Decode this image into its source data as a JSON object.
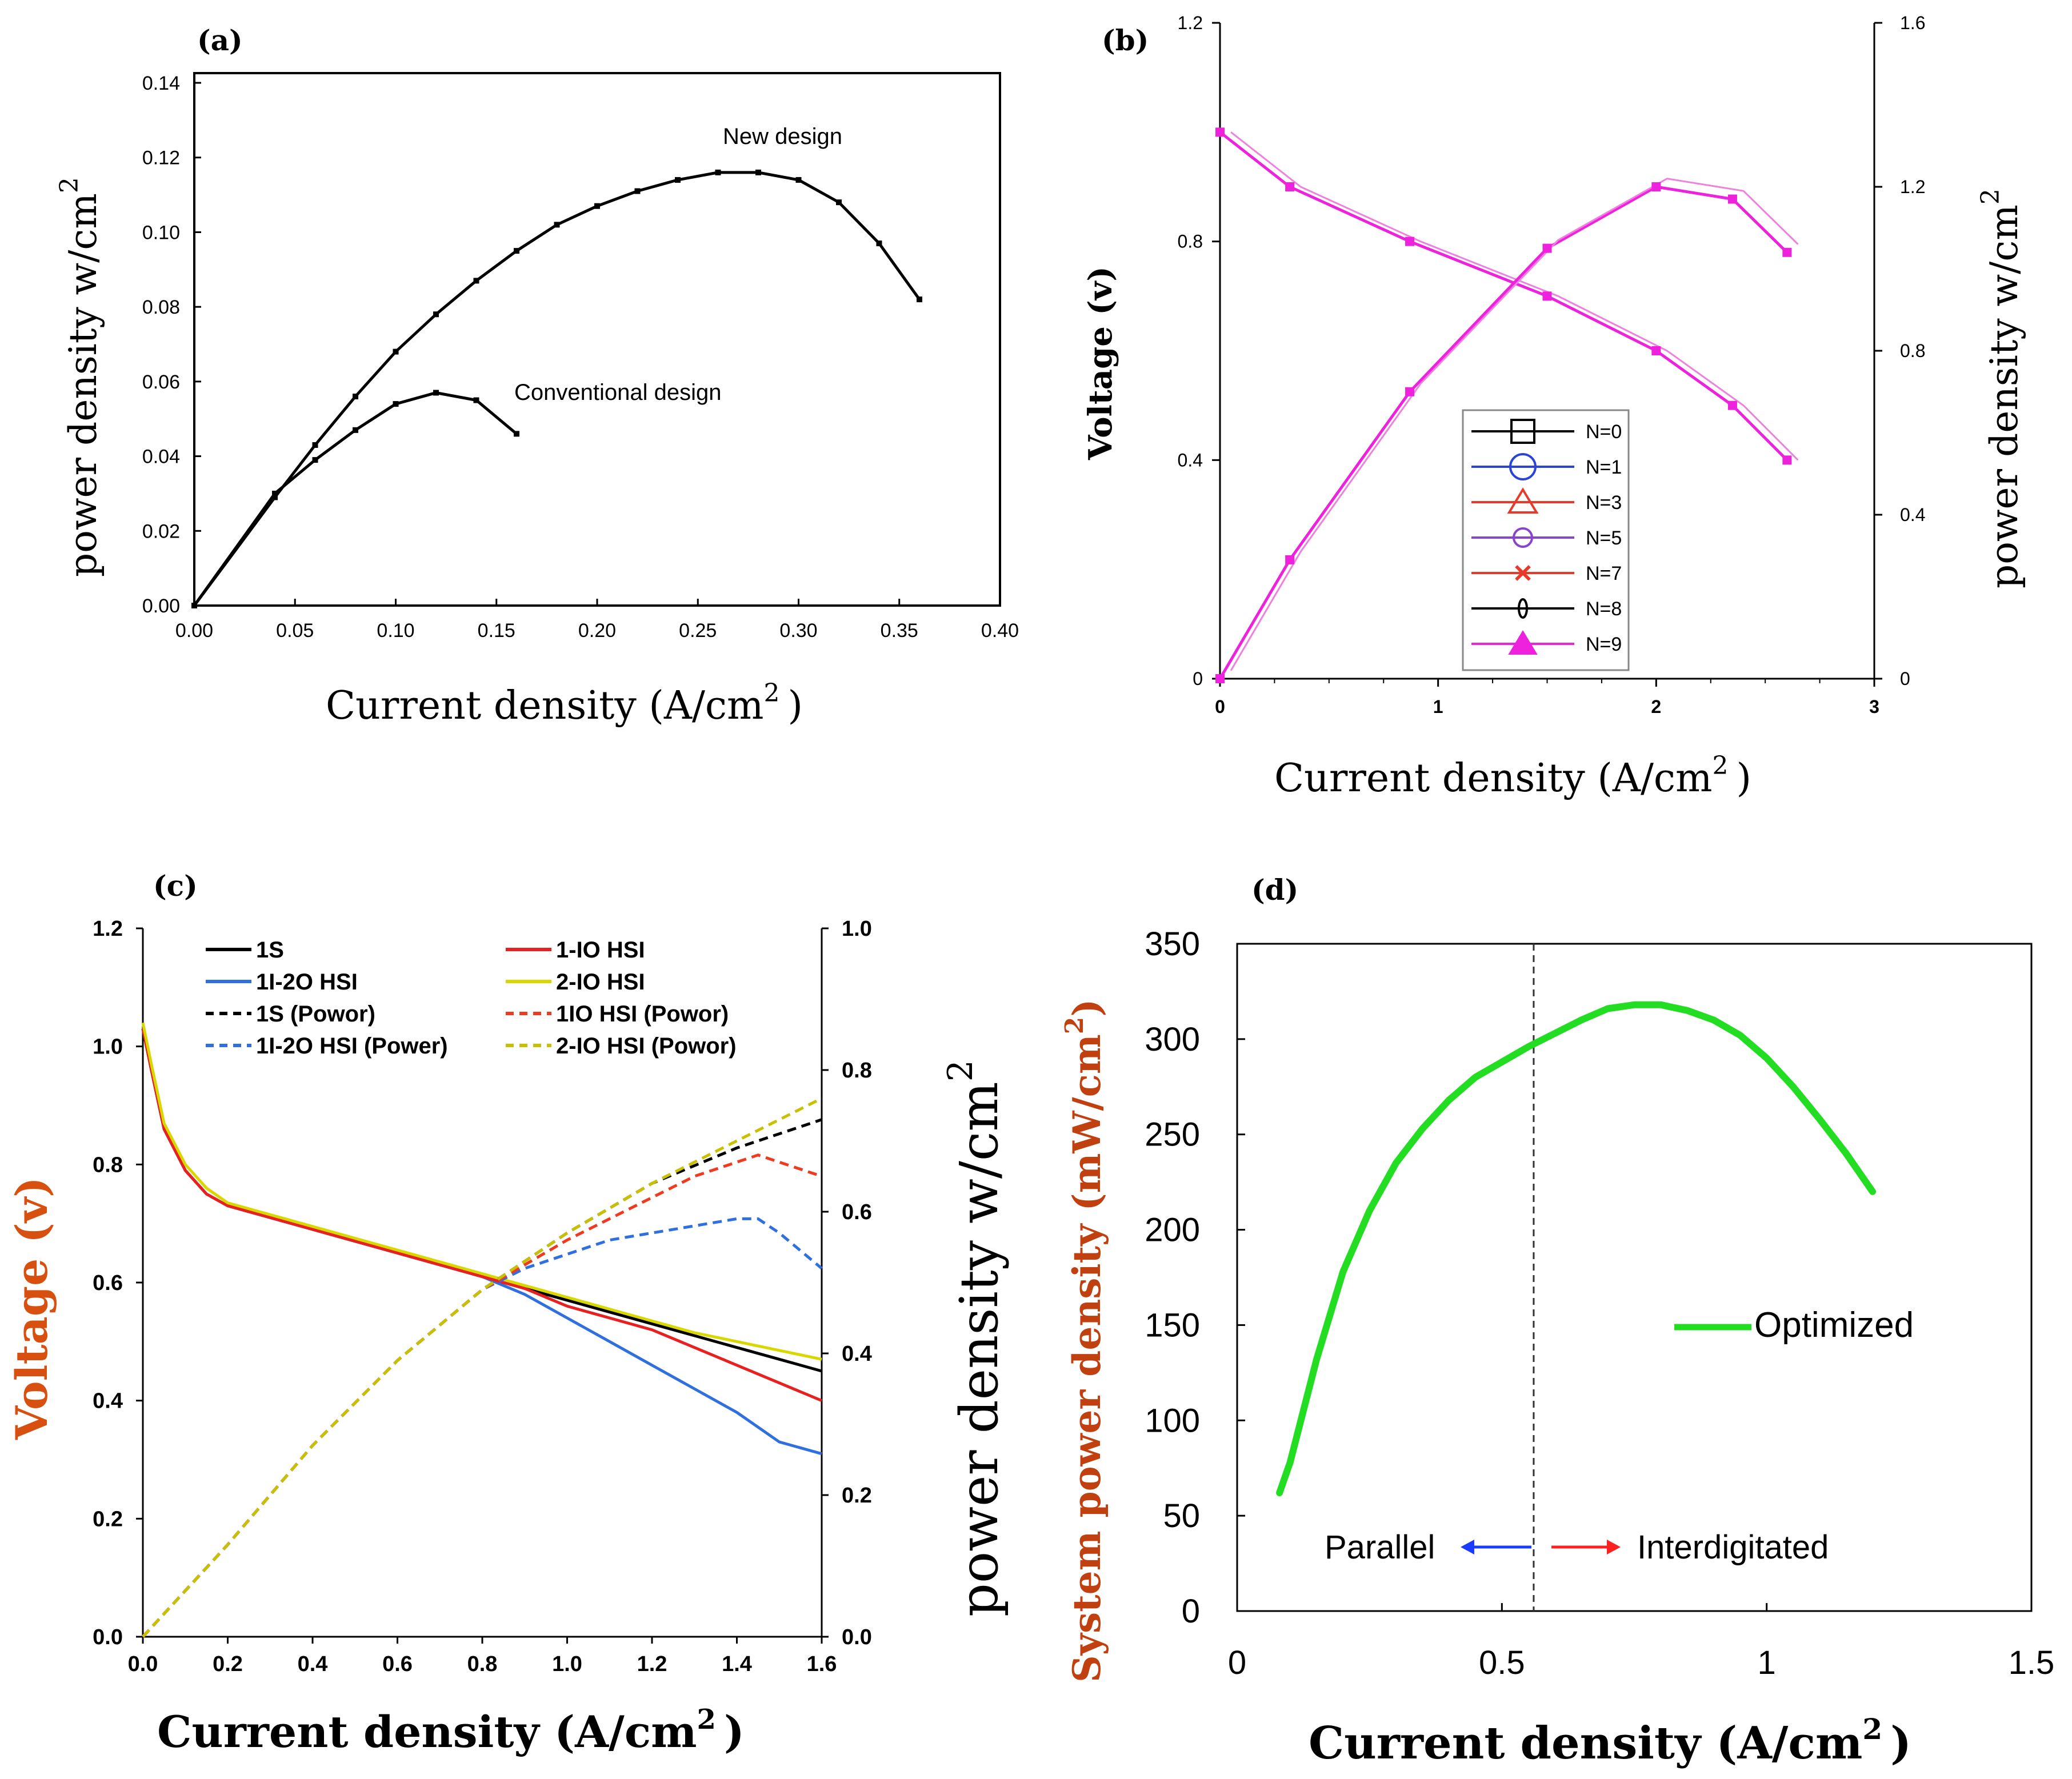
{
  "chart_data": [
    {
      "panel": "(a)",
      "type": "line",
      "xlabel_main": "Current density (A/cm",
      "xlabel_sup": "2",
      "xlabel_tail": ")",
      "ylabel_main": "power density w/cm",
      "ylabel_sup": "2",
      "xlim": [
        0,
        0.4
      ],
      "ylim": [
        0,
        0.14
      ],
      "xticks": [
        "0.00",
        "0.05",
        "0.10",
        "0.15",
        "0.20",
        "0.25",
        "0.30",
        "0.35",
        "0.40"
      ],
      "yticks": [
        "0.00",
        "0.02",
        "0.04",
        "0.06",
        "0.08",
        "0.10",
        "0.12",
        "0.14"
      ],
      "series": [
        {
          "name": "New design",
          "x": [
            0,
            0.04,
            0.06,
            0.08,
            0.1,
            0.12,
            0.14,
            0.16,
            0.18,
            0.2,
            0.22,
            0.24,
            0.26,
            0.28,
            0.3,
            0.32,
            0.34,
            0.36
          ],
          "y": [
            0,
            0.029,
            0.043,
            0.056,
            0.068,
            0.078,
            0.087,
            0.095,
            0.102,
            0.107,
            0.111,
            0.114,
            0.116,
            0.116,
            0.114,
            0.108,
            0.097,
            0.082
          ]
        },
        {
          "name": "Conventional design",
          "x": [
            0,
            0.04,
            0.06,
            0.08,
            0.1,
            0.12,
            0.14,
            0.16
          ],
          "y": [
            0,
            0.03,
            0.039,
            0.047,
            0.054,
            0.057,
            0.055,
            0.046
          ]
        }
      ],
      "annotations": [
        "New design",
        "Conventional design"
      ]
    },
    {
      "panel": "(b)",
      "type": "line",
      "xlabel_main": "Current density (A/cm",
      "xlabel_sup": "2",
      "xlabel_tail": ")",
      "ylabel_left": "Voltage (v)",
      "ylabel_right_main": "power density w/cm",
      "ylabel_right_sup": "2",
      "xlim": [
        0,
        3
      ],
      "ylim_left": [
        0,
        1.2
      ],
      "ylim_right": [
        0,
        1.6
      ],
      "xticks": [
        "0",
        "1",
        "2",
        "3"
      ],
      "yticks_left": [
        "0",
        "0.4",
        "0.8",
        "1.2"
      ],
      "yticks_right": [
        "0",
        "0.4",
        "0.8",
        "1.2",
        "1.6"
      ],
      "legend": [
        "N=0",
        "N=1",
        "N=3",
        "N=5",
        "N=7",
        "N=8",
        "N=9"
      ],
      "legend_colors": [
        "#000000",
        "#2a44d8",
        "#e83a2a",
        "#8844cc",
        "#e83a2a",
        "#000000",
        "#ee22dd"
      ],
      "voltage": {
        "x": [
          0,
          0.32,
          0.87,
          1.5,
          2.0,
          2.35,
          2.6
        ],
        "y": [
          1.0,
          0.9,
          0.8,
          0.7,
          0.6,
          0.5,
          0.4
        ]
      },
      "power": {
        "x": [
          0,
          0.32,
          0.87,
          1.5,
          2.0,
          2.35,
          2.6
        ],
        "y": [
          0,
          0.29,
          0.7,
          1.05,
          1.2,
          1.17,
          1.04
        ]
      }
    },
    {
      "panel": "(c)",
      "type": "line",
      "xlabel_main": "Current density (A/cm",
      "xlabel_sup": "2",
      "xlabel_tail": ")",
      "ylabel_left": "Voltage (v)",
      "ylabel_right_main": "power density w/cm",
      "ylabel_right_sup": "2",
      "xlim": [
        0,
        1.6
      ],
      "ylim_left": [
        0,
        1.2
      ],
      "ylim_right": [
        0,
        1.0
      ],
      "xticks": [
        "0.0",
        "0.2",
        "0.4",
        "0.6",
        "0.8",
        "1.0",
        "1.2",
        "1.4",
        "1.6"
      ],
      "yticks_left": [
        "0.0",
        "0.2",
        "0.4",
        "0.6",
        "0.8",
        "1.0",
        "1.2"
      ],
      "yticks_right": [
        "0.0",
        "0.2",
        "0.4",
        "0.6",
        "0.8",
        "1.0"
      ],
      "legend": [
        "1S",
        "1I-2O HSI",
        "1S (Powor)",
        "1I-2O HSI (Power)",
        "1-IO HSI",
        "2-IO HSI",
        "1IO HSI (Powor)",
        "2-IO HSI (Powor)"
      ],
      "series": [
        {
          "name": "1S",
          "color": "#000000",
          "dash": false,
          "x": [
            0,
            0.02,
            0.05,
            0.1,
            0.15,
            0.2,
            0.3,
            0.4,
            0.5,
            0.6,
            0.7,
            0.8,
            0.9,
            1.0,
            1.1,
            1.2,
            1.3,
            1.4,
            1.5,
            1.6
          ],
          "y": [
            1.03,
            0.96,
            0.86,
            0.79,
            0.75,
            0.73,
            0.71,
            0.69,
            0.67,
            0.65,
            0.63,
            0.61,
            0.59,
            0.57,
            0.55,
            0.53,
            0.51,
            0.49,
            0.47,
            0.45
          ]
        },
        {
          "name": "1I-2O HSI",
          "color": "#2f6fe0",
          "dash": false,
          "x": [
            0,
            0.02,
            0.05,
            0.1,
            0.15,
            0.2,
            0.3,
            0.4,
            0.5,
            0.6,
            0.7,
            0.8,
            0.9,
            1.0,
            1.1,
            1.2,
            1.3,
            1.4,
            1.5,
            1.6
          ],
          "y": [
            1.03,
            0.96,
            0.86,
            0.79,
            0.75,
            0.73,
            0.71,
            0.69,
            0.67,
            0.65,
            0.63,
            0.61,
            0.58,
            0.54,
            0.5,
            0.46,
            0.42,
            0.38,
            0.33,
            0.31
          ]
        },
        {
          "name": "1-IO HSI",
          "color": "#e82020",
          "dash": false,
          "x": [
            0,
            0.02,
            0.05,
            0.1,
            0.15,
            0.2,
            0.3,
            0.4,
            0.5,
            0.6,
            0.7,
            0.8,
            0.9,
            1.0,
            1.1,
            1.2,
            1.3,
            1.4,
            1.5,
            1.6
          ],
          "y": [
            1.03,
            0.96,
            0.86,
            0.79,
            0.75,
            0.73,
            0.71,
            0.69,
            0.67,
            0.65,
            0.63,
            0.61,
            0.59,
            0.56,
            0.54,
            0.52,
            0.49,
            0.46,
            0.43,
            0.4
          ]
        },
        {
          "name": "2-IO HSI",
          "color": "#d8d800",
          "dash": false,
          "x": [
            0,
            0.02,
            0.05,
            0.1,
            0.15,
            0.2,
            0.3,
            0.4,
            0.5,
            0.6,
            0.7,
            0.8,
            0.9,
            1.0,
            1.1,
            1.2,
            1.3,
            1.4,
            1.5,
            1.6
          ],
          "y": [
            1.04,
            0.97,
            0.87,
            0.8,
            0.76,
            0.735,
            0.715,
            0.695,
            0.675,
            0.655,
            0.635,
            0.615,
            0.595,
            0.575,
            0.555,
            0.535,
            0.515,
            0.5,
            0.485,
            0.47
          ]
        },
        {
          "name": "1S (Powor)",
          "color": "#000000",
          "dash": true,
          "axis": "right",
          "x": [
            0,
            0.2,
            0.4,
            0.6,
            0.8,
            1.0,
            1.2,
            1.4,
            1.5,
            1.6
          ],
          "y": [
            0,
            0.13,
            0.27,
            0.39,
            0.49,
            0.57,
            0.64,
            0.69,
            0.71,
            0.73
          ]
        },
        {
          "name": "1I-2O HSI (Power)",
          "color": "#2f6fe0",
          "dash": true,
          "axis": "right",
          "x": [
            0,
            0.2,
            0.4,
            0.6,
            0.8,
            0.9,
            1.0,
            1.1,
            1.2,
            1.3,
            1.4,
            1.45,
            1.5,
            1.6
          ],
          "y": [
            0,
            0.13,
            0.27,
            0.39,
            0.49,
            0.52,
            0.54,
            0.56,
            0.57,
            0.58,
            0.59,
            0.59,
            0.57,
            0.52
          ]
        },
        {
          "name": "1IO HSI (Powor)",
          "color": "#f03a20",
          "dash": true,
          "axis": "right",
          "x": [
            0,
            0.2,
            0.4,
            0.6,
            0.8,
            1.0,
            1.2,
            1.3,
            1.4,
            1.45,
            1.5,
            1.6
          ],
          "y": [
            0,
            0.13,
            0.27,
            0.39,
            0.49,
            0.56,
            0.62,
            0.65,
            0.67,
            0.68,
            0.67,
            0.65
          ]
        },
        {
          "name": "2-IO HSI (Powor)",
          "color": "#c8c000",
          "dash": true,
          "axis": "right",
          "x": [
            0,
            0.2,
            0.4,
            0.6,
            0.8,
            1.0,
            1.2,
            1.4,
            1.5,
            1.6
          ],
          "y": [
            0,
            0.13,
            0.27,
            0.39,
            0.49,
            0.57,
            0.64,
            0.7,
            0.73,
            0.76
          ]
        }
      ]
    },
    {
      "panel": "(d)",
      "type": "line",
      "xlabel_main": "Current density (A/cm",
      "xlabel_sup": "2",
      "xlabel_tail": ")",
      "ylabel_main": "System power density (mW/cm",
      "ylabel_sup": "2",
      "ylabel_tail": ")",
      "xlim": [
        0,
        1.5
      ],
      "ylim": [
        0,
        350
      ],
      "xticks": [
        "0",
        "0.5",
        "1",
        "1.5"
      ],
      "yticks": [
        "0",
        "50",
        "100",
        "150",
        "200",
        "250",
        "300",
        "350"
      ],
      "legend": [
        "Optimized"
      ],
      "series": [
        {
          "name": "Optimized",
          "color": "#22dd22",
          "x": [
            0.08,
            0.1,
            0.15,
            0.2,
            0.25,
            0.3,
            0.35,
            0.4,
            0.45,
            0.5,
            0.55,
            0.6,
            0.65,
            0.7,
            0.75,
            0.8,
            0.85,
            0.9,
            0.95,
            1.0,
            1.05,
            1.1,
            1.15,
            1.2
          ],
          "y": [
            62,
            78,
            132,
            178,
            210,
            235,
            253,
            268,
            280,
            288,
            296,
            303,
            310,
            316,
            318,
            318,
            315,
            310,
            302,
            290,
            275,
            258,
            240,
            220
          ]
        }
      ],
      "divider_x": 0.56,
      "region_labels": [
        "Parallel",
        "Interdigitated"
      ]
    }
  ]
}
